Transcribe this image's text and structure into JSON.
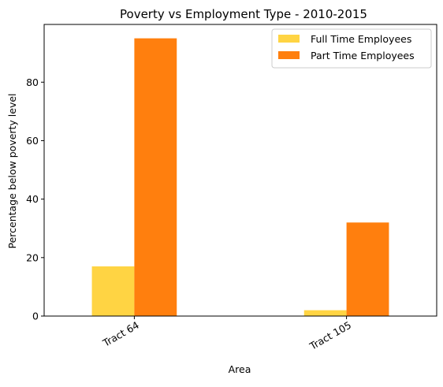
{
  "chart_data": {
    "type": "bar",
    "title": "Poverty vs Employment Type - 2010-2015",
    "xlabel": "Area",
    "ylabel": "Percentage below poverty level",
    "categories": [
      "Tract 64",
      "Tract 105"
    ],
    "series": [
      {
        "name": "Full Time Employees",
        "values": [
          17,
          2
        ],
        "color": "#ffd443"
      },
      {
        "name": "Part Time Employees",
        "values": [
          95,
          32
        ],
        "color": "#ff7f0e"
      }
    ],
    "ylim": [
      0,
      99.75
    ],
    "yticks": [
      0,
      20,
      40,
      60,
      80
    ],
    "grid": false,
    "legend": "top-right"
  }
}
